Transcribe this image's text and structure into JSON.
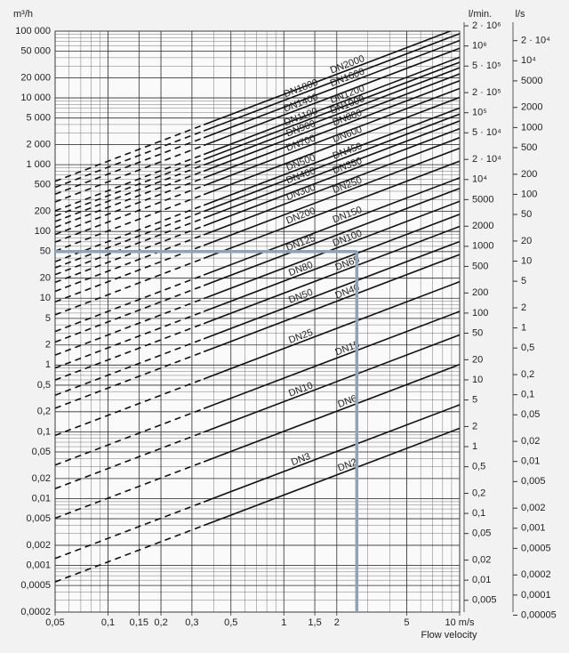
{
  "chart_data": {
    "type": "line",
    "log_x": true,
    "log_y": true,
    "grid": true,
    "minor_grid": true,
    "color": "#111111",
    "y_label": "m³/h",
    "y2_label": "l/min.",
    "y3_label": "l/s",
    "x_label": "Flow velocity",
    "xlim": [
      0.05,
      10
    ],
    "xticks": [
      {
        "value": 0.05,
        "label": "0,05"
      },
      {
        "value": 0.1,
        "label": "0,1"
      },
      {
        "value": 0.15,
        "label": "0,15"
      },
      {
        "value": 0.2,
        "label": "0,2"
      },
      {
        "value": 0.3,
        "label": "0,3"
      },
      {
        "value": 0.5,
        "label": "0,5"
      },
      1,
      {
        "value": 1.5,
        "label": "1,5"
      },
      2,
      5,
      {
        "value": 10,
        "label": "10 m/s"
      }
    ],
    "ylim": [
      0.0002,
      100000
    ],
    "yticks": [
      {
        "value": 100000,
        "label": "100 000"
      },
      {
        "value": 50000,
        "label": "50 000"
      },
      {
        "value": 20000,
        "label": "20 000"
      },
      {
        "value": 10000,
        "label": "10 000"
      },
      {
        "value": 5000,
        "label": "5 000"
      },
      {
        "value": 2000,
        "label": "2 000"
      },
      {
        "value": 1000,
        "label": "1 000"
      },
      500,
      200,
      100,
      50,
      20,
      10,
      5,
      2,
      1,
      {
        "value": 0.5,
        "label": "0,5"
      },
      {
        "value": 0.2,
        "label": "0,2"
      },
      {
        "value": 0.1,
        "label": "0,1"
      },
      {
        "value": 0.05,
        "label": "0,05"
      },
      {
        "value": 0.02,
        "label": "0,02"
      },
      {
        "value": 0.01,
        "label": "0,01"
      },
      {
        "value": 0.005,
        "label": "0,005"
      },
      {
        "value": 0.002,
        "label": "0,002"
      },
      {
        "value": 0.001,
        "label": "0,001"
      },
      {
        "value": 0.0005,
        "label": "0,0005"
      },
      {
        "value": 0.0002,
        "label": "0,0002"
      }
    ],
    "y2lim": [
      0.00333,
      1666667
    ],
    "y2ticks": [
      {
        "value": 2000000,
        "label": "2 · 10⁶"
      },
      {
        "value": 1000000,
        "label": "10⁶"
      },
      {
        "value": 500000,
        "label": "5 · 10⁵"
      },
      {
        "value": 200000,
        "label": "2 · 10⁵"
      },
      {
        "value": 100000,
        "label": "10⁵"
      },
      {
        "value": 50000,
        "label": "5 · 10⁴"
      },
      {
        "value": 20000,
        "label": "2 · 10⁴"
      },
      {
        "value": 10000,
        "label": "10⁴"
      },
      5000,
      2000,
      1000,
      500,
      200,
      100,
      50,
      20,
      10,
      5,
      2,
      1,
      {
        "value": 0.5,
        "label": "0,5"
      },
      {
        "value": 0.2,
        "label": "0,2"
      },
      {
        "value": 0.1,
        "label": "0,1"
      },
      {
        "value": 0.05,
        "label": "0,05"
      },
      {
        "value": 0.02,
        "label": "0,02"
      },
      {
        "value": 0.01,
        "label": "0,01"
      },
      {
        "value": 0.005,
        "label": "0,005"
      }
    ],
    "y3lim": [
      5.56e-05,
      27778
    ],
    "y3ticks": [
      {
        "value": 20000,
        "label": "2 · 10⁴"
      },
      {
        "value": 10000,
        "label": "10⁴"
      },
      5000,
      2000,
      1000,
      500,
      200,
      100,
      50,
      20,
      10,
      5,
      2,
      1,
      {
        "value": 0.5,
        "label": "0,5"
      },
      {
        "value": 0.2,
        "label": "0,2"
      },
      {
        "value": 0.1,
        "label": "0,1"
      },
      {
        "value": 0.05,
        "label": "0,05"
      },
      {
        "value": 0.02,
        "label": "0,02"
      },
      {
        "value": 0.01,
        "label": "0,01"
      },
      {
        "value": 0.005,
        "label": "0,005"
      },
      {
        "value": 0.002,
        "label": "0,002"
      },
      {
        "value": 0.001,
        "label": "0,001"
      },
      {
        "value": 0.0005,
        "label": "0,0005"
      },
      {
        "value": 0.0002,
        "label": "0,0002"
      },
      {
        "value": 0.0001,
        "label": "0,0001"
      },
      {
        "value": 5e-05,
        "label": "0,00005"
      }
    ],
    "x": [
      0.05,
      0.35,
      10
    ],
    "line_styles": [
      "dashed",
      "solid"
    ],
    "series": [
      {
        "name": "DN2",
        "values": [
          0.000565,
          0.00396,
          0.113
        ]
      },
      {
        "name": "DN3",
        "values": [
          0.00127,
          0.00891,
          0.254
        ]
      },
      {
        "name": "DN6",
        "values": [
          0.00509,
          0.0356,
          1.02
        ]
      },
      {
        "name": "DN10",
        "values": [
          0.0141,
          0.099,
          2.83
        ]
      },
      {
        "name": "DN15",
        "values": [
          0.0318,
          0.223,
          6.36
        ]
      },
      {
        "name": "DN25",
        "values": [
          0.0884,
          0.619,
          17.7
        ]
      },
      {
        "name": "DN40",
        "values": [
          0.226,
          1.58,
          45.2
        ]
      },
      {
        "name": "DN50",
        "values": [
          0.353,
          2.47,
          70.7
        ]
      },
      {
        "name": "DN65",
        "values": [
          0.597,
          4.18,
          119
        ]
      },
      {
        "name": "DN80",
        "values": [
          0.905,
          6.33,
          181
        ]
      },
      {
        "name": "DN100",
        "values": [
          1.41,
          9.9,
          283
        ]
      },
      {
        "name": "DN125",
        "values": [
          2.21,
          15.5,
          442
        ]
      },
      {
        "name": "DN150",
        "values": [
          3.18,
          22.3,
          636
        ]
      },
      {
        "name": "DN200",
        "values": [
          5.65,
          39.6,
          1131
        ]
      },
      {
        "name": "DN250",
        "values": [
          8.84,
          61.9,
          1767
        ]
      },
      {
        "name": "DN300",
        "values": [
          12.7,
          89.1,
          2545
        ]
      },
      {
        "name": "DN350",
        "values": [
          17.3,
          121,
          3464
        ]
      },
      {
        "name": "DN400",
        "values": [
          22.6,
          158,
          4524
        ]
      },
      {
        "name": "DN450",
        "values": [
          28.6,
          200,
          5726
        ]
      },
      {
        "name": "DN500",
        "values": [
          35.3,
          247,
          7069
        ]
      },
      {
        "name": "DN600",
        "values": [
          50.9,
          356,
          10179
        ]
      },
      {
        "name": "DN700",
        "values": [
          69.3,
          485,
          13854
        ]
      },
      {
        "name": "DN800",
        "values": [
          90.5,
          633,
          18096
        ]
      },
      {
        "name": "DN900",
        "values": [
          115,
          802,
          22902
        ]
      },
      {
        "name": "DN1000",
        "values": [
          141,
          990,
          28274
        ]
      },
      {
        "name": "DN1100",
        "values": [
          171,
          1197,
          34212
        ]
      },
      {
        "name": "DN1200",
        "values": [
          204,
          1425,
          40715
        ]
      },
      {
        "name": "DN1400",
        "values": [
          277,
          1940,
          55418
        ]
      },
      {
        "name": "DN1600",
        "values": [
          362,
          2533,
          72382
        ]
      },
      {
        "name": "DN1800",
        "values": [
          458,
          3206,
          91609
        ]
      },
      {
        "name": "DN2000",
        "values": [
          565,
          3958,
          113097
        ]
      }
    ],
    "highlight": {
      "x": 2.6,
      "y": 50,
      "color": "#8ea3b5"
    }
  }
}
